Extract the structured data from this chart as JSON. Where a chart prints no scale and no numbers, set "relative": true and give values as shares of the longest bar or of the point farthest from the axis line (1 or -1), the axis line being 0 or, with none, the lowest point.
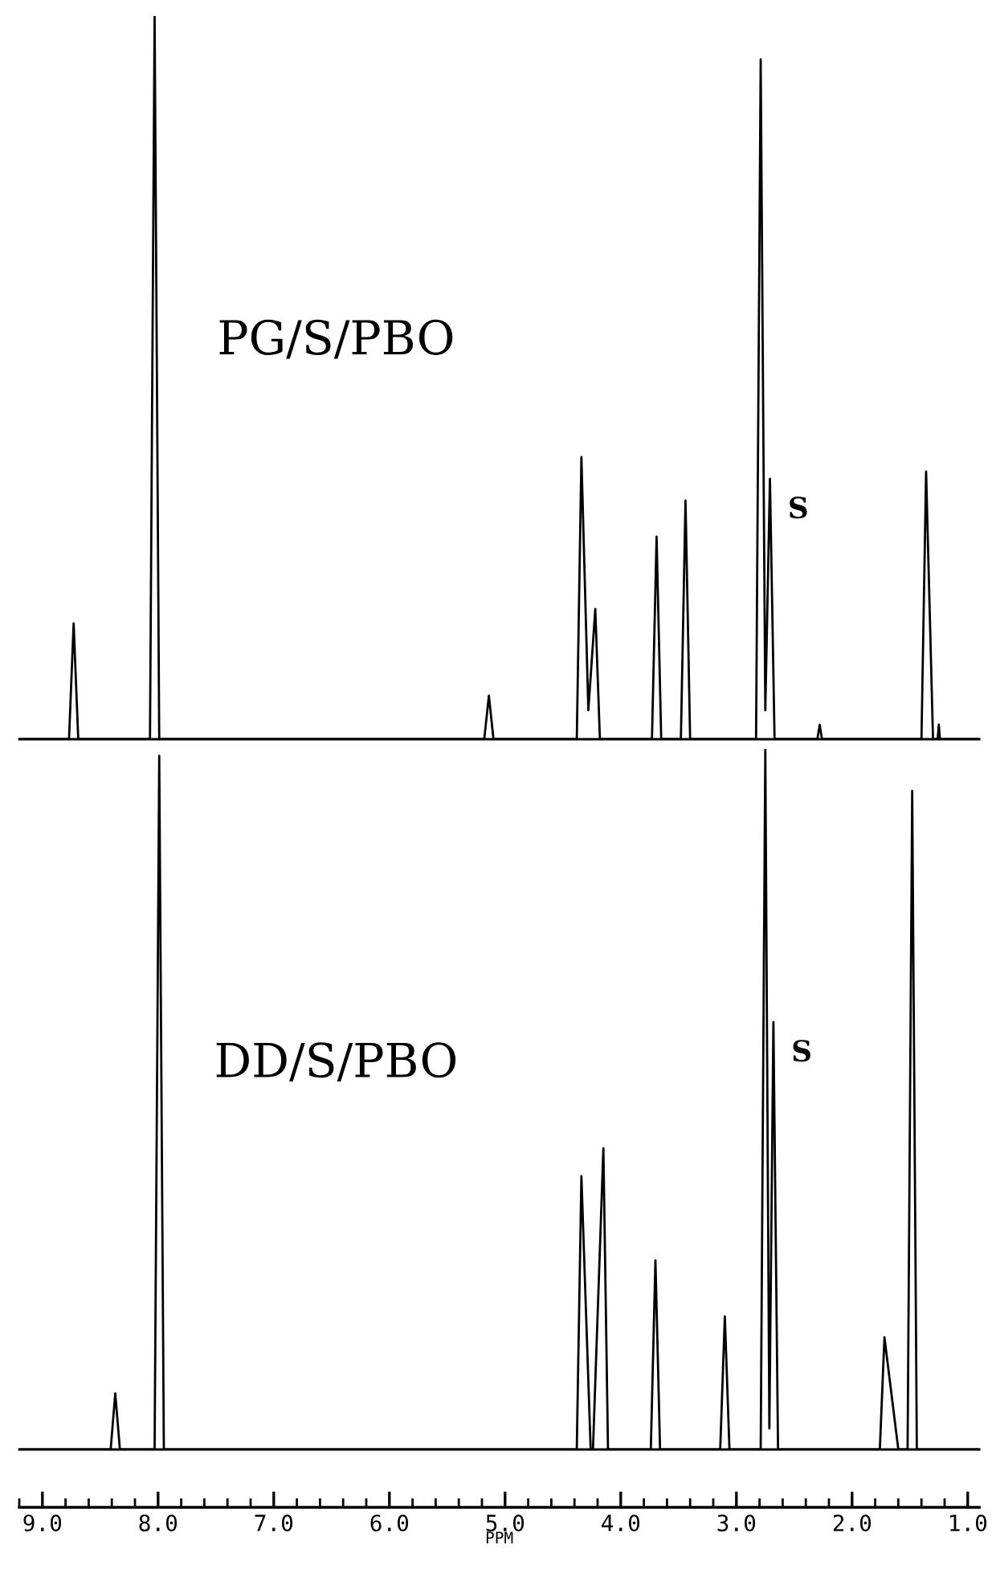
{
  "chart_data": [
    {
      "type": "line",
      "relative": true,
      "xlim": [
        9.2,
        0.9
      ],
      "tick_labels": false,
      "annotations": [
        "PG/S/PBO",
        {
          "text": "S",
          "x": 2.71,
          "y": 0.36
        }
      ],
      "x": [
        9.2,
        8.77,
        8.73,
        8.69,
        8.07,
        8.03,
        7.99,
        5.18,
        5.14,
        5.1,
        4.38,
        4.34,
        4.28,
        4.22,
        4.18,
        3.73,
        3.69,
        3.65,
        3.48,
        3.44,
        3.4,
        2.83,
        2.79,
        2.75,
        2.71,
        2.67,
        2.3,
        2.28,
        2.26,
        1.4,
        1.36,
        1.3,
        1.26,
        1.25,
        1.24,
        0.9
      ],
      "series": [
        {
          "color": "#000000",
          "values": [
            0,
            0,
            0.16,
            0,
            0,
            1,
            0,
            0,
            0.06,
            0,
            0,
            0.39,
            0.04,
            0.18,
            0,
            0,
            0.28,
            0,
            0,
            0.33,
            0,
            0,
            0.94,
            0.04,
            0.36,
            0,
            0,
            0.02,
            0,
            0,
            0.37,
            0,
            0,
            0.02,
            0,
            0
          ]
        }
      ]
    },
    {
      "type": "line",
      "relative": true,
      "xlim": [
        9.2,
        0.9
      ],
      "tick_labels": "x",
      "xlabel": "PPM",
      "xticks": [
        {
          "value": 9,
          "label": "9.0"
        },
        {
          "value": 8,
          "label": "8.0"
        },
        {
          "value": 7,
          "label": "7.0"
        },
        {
          "value": 6,
          "label": "6.0"
        },
        {
          "value": 5,
          "label": "5.0"
        },
        {
          "value": 4,
          "label": "4.0"
        },
        {
          "value": 3,
          "label": "3.0"
        },
        {
          "value": 2,
          "label": "2.0"
        },
        {
          "value": 1,
          "label": "1.0"
        }
      ],
      "annotations": [
        "DD/S/PBO",
        {
          "text": "S",
          "x": 2.68,
          "y": 0.61
        }
      ],
      "x": [
        9.2,
        8.41,
        8.37,
        8.33,
        8.03,
        7.99,
        7.95,
        4.38,
        4.34,
        4.26,
        4.24,
        4.15,
        4.11,
        3.74,
        3.7,
        3.66,
        3.14,
        3.1,
        3.06,
        2.79,
        2.75,
        2.715,
        2.68,
        2.64,
        1.76,
        1.72,
        1.6,
        1.52,
        1.48,
        1.44,
        0.9
      ],
      "series": [
        {
          "color": "#000000",
          "values": [
            0,
            0,
            0.08,
            0,
            0,
            0.99,
            0,
            0,
            0.39,
            0,
            0,
            0.43,
            0,
            0,
            0.27,
            0,
            0,
            0.19,
            0,
            0,
            1,
            0.03,
            0.61,
            0,
            0,
            0.16,
            0,
            0,
            0.94,
            0,
            0
          ]
        }
      ]
    }
  ]
}
